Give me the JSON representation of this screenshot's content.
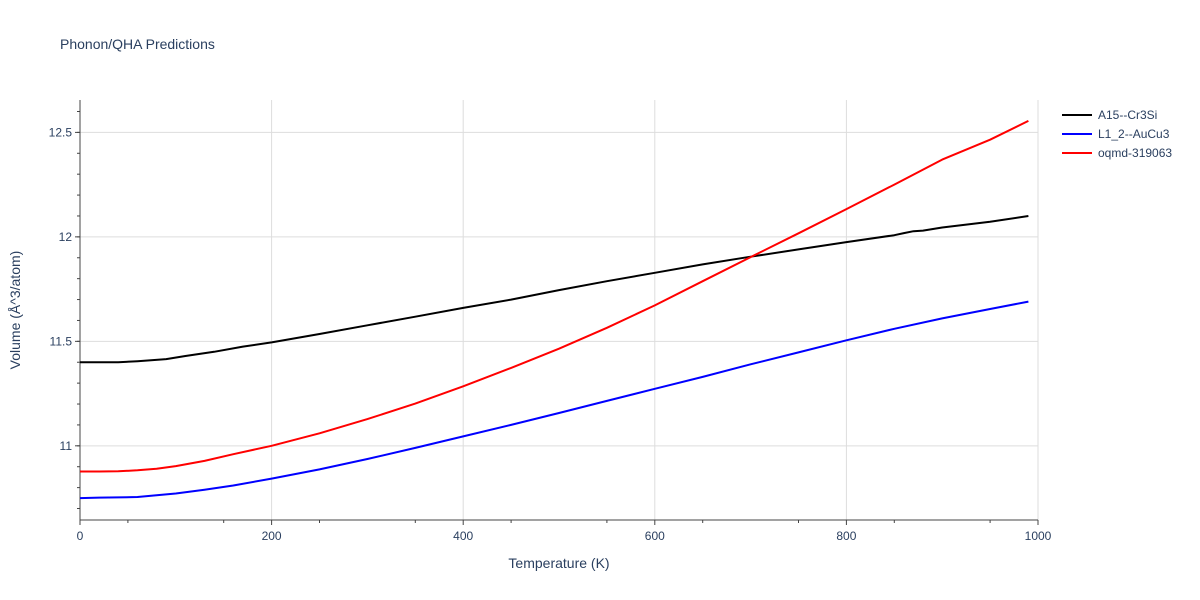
{
  "chart_data": {
    "type": "line",
    "title": "Phonon/QHA Predictions",
    "xlabel": "Temperature (K)",
    "ylabel": "Volume (Å^3/atom)",
    "xlim": [
      0,
      1000
    ],
    "ylim": [
      10.645,
      12.655
    ],
    "x_ticks": [
      "0",
      "200",
      "400",
      "600",
      "800",
      "1000"
    ],
    "y_ticks": [
      "11",
      "11.5",
      "12",
      "12.5"
    ],
    "grid": true,
    "legend_position": "top-right",
    "series": [
      {
        "name": "A15--Cr3Si",
        "color": "#000000",
        "x": [
          0,
          20,
          40,
          60,
          90,
          110,
          140,
          170,
          200,
          250,
          300,
          350,
          400,
          450,
          500,
          550,
          600,
          650,
          700,
          750,
          800,
          850,
          860,
          870,
          880,
          900,
          950,
          990
        ],
        "y": [
          11.4,
          11.4,
          11.4,
          11.405,
          11.415,
          11.43,
          11.45,
          11.475,
          11.495,
          11.535,
          11.577,
          11.618,
          11.66,
          11.7,
          11.745,
          11.788,
          11.828,
          11.868,
          11.905,
          11.94,
          11.975,
          12.008,
          12.018,
          12.027,
          12.03,
          12.045,
          12.072,
          12.1
        ]
      },
      {
        "name": "L1_2--AuCu3",
        "color": "#0000ff",
        "x": [
          0,
          20,
          40,
          60,
          80,
          100,
          130,
          160,
          200,
          250,
          300,
          350,
          400,
          450,
          500,
          550,
          600,
          650,
          700,
          750,
          800,
          850,
          900,
          950,
          990
        ],
        "y": [
          10.75,
          10.752,
          10.753,
          10.755,
          10.763,
          10.772,
          10.79,
          10.81,
          10.843,
          10.887,
          10.937,
          10.99,
          11.045,
          11.1,
          11.157,
          11.215,
          11.273,
          11.33,
          11.39,
          11.447,
          11.505,
          11.56,
          11.61,
          11.655,
          11.69
        ]
      },
      {
        "name": "oqmd-319063",
        "color": "#ff0000",
        "x": [
          0,
          20,
          40,
          60,
          80,
          100,
          130,
          160,
          200,
          250,
          300,
          350,
          400,
          450,
          500,
          550,
          600,
          650,
          700,
          750,
          800,
          850,
          900,
          950,
          990
        ],
        "y": [
          10.877,
          10.877,
          10.878,
          10.883,
          10.89,
          10.903,
          10.928,
          10.96,
          11.0,
          11.06,
          11.128,
          11.202,
          11.285,
          11.373,
          11.465,
          11.565,
          11.672,
          11.788,
          11.903,
          12.017,
          12.133,
          12.25,
          12.37,
          12.465,
          12.555
        ]
      }
    ]
  }
}
